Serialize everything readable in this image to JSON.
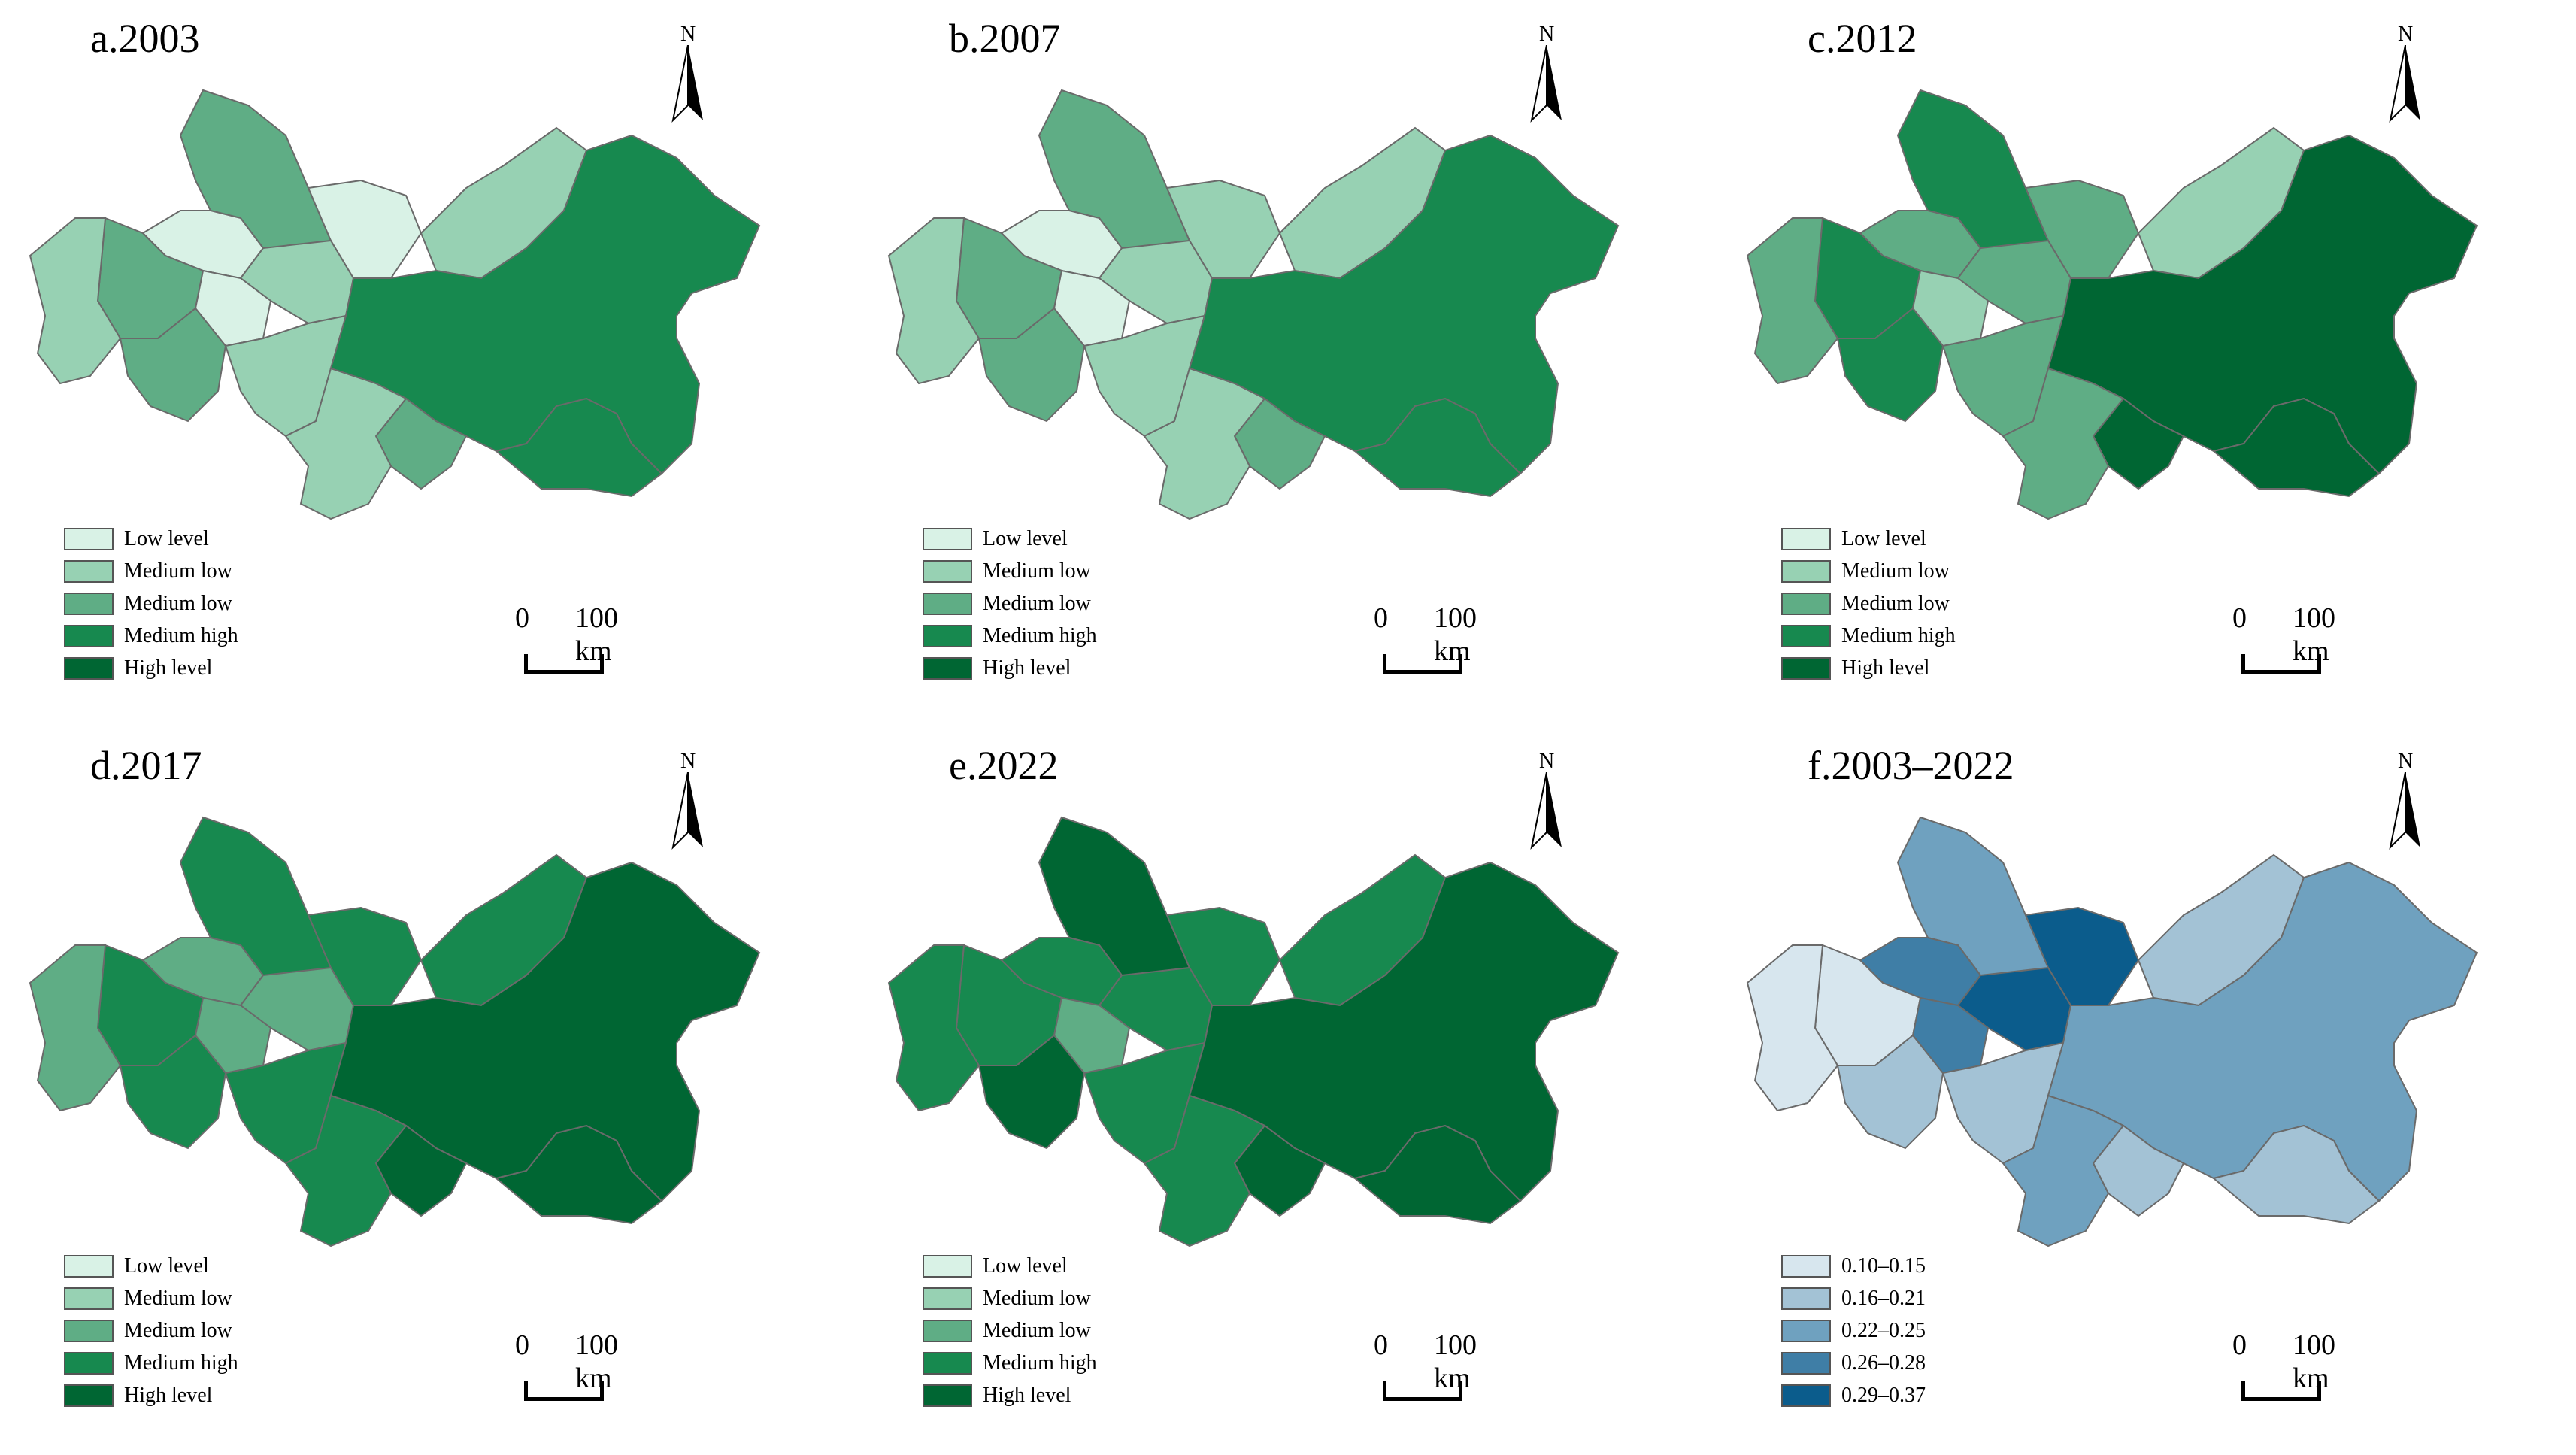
{
  "panels": [
    {
      "title": "a.2003",
      "north_label": "N",
      "scale": {
        "zero": "0",
        "distance": "100 km"
      },
      "legend": [
        {
          "label": "Low level",
          "color": "#d9f2e6"
        },
        {
          "label": "Medium low",
          "color": "#97d1b3"
        },
        {
          "label": "Medium low",
          "color": "#5fad85"
        },
        {
          "label": "Medium high",
          "color": "#17894f"
        },
        {
          "label": "High level",
          "color": "#006633"
        }
      ],
      "region_colors": [
        "#5fad85",
        "#d9f2e6",
        "#d9f2e6",
        "#97d1b3",
        "#5fad85",
        "#97d1b3",
        "#d9f2e6",
        "#97d1b3",
        "#5fad85",
        "#97d1b3",
        "#17894f",
        "#5fad85",
        "#17894f",
        "#97d1b3"
      ]
    },
    {
      "title": "b.2007",
      "north_label": "N",
      "scale": {
        "zero": "0",
        "distance": "100 km"
      },
      "legend": [
        {
          "label": "Low level",
          "color": "#d9f2e6"
        },
        {
          "label": "Medium low",
          "color": "#97d1b3"
        },
        {
          "label": "Medium low",
          "color": "#5fad85"
        },
        {
          "label": "Medium high",
          "color": "#17894f"
        },
        {
          "label": "High level",
          "color": "#006633"
        }
      ],
      "region_colors": [
        "#5fad85",
        "#d9f2e6",
        "#97d1b3",
        "#97d1b3",
        "#5fad85",
        "#97d1b3",
        "#d9f2e6",
        "#97d1b3",
        "#5fad85",
        "#97d1b3",
        "#17894f",
        "#5fad85",
        "#17894f",
        "#97d1b3"
      ]
    },
    {
      "title": "c.2012",
      "north_label": "N",
      "scale": {
        "zero": "0",
        "distance": "100 km"
      },
      "legend": [
        {
          "label": "Low level",
          "color": "#d9f2e6"
        },
        {
          "label": "Medium low",
          "color": "#97d1b3"
        },
        {
          "label": "Medium low",
          "color": "#5fad85"
        },
        {
          "label": "Medium high",
          "color": "#17894f"
        },
        {
          "label": "High level",
          "color": "#006633"
        }
      ],
      "region_colors": [
        "#17894f",
        "#5fad85",
        "#5fad85",
        "#97d1b3",
        "#17894f",
        "#5fad85",
        "#97d1b3",
        "#5fad85",
        "#17894f",
        "#5fad85",
        "#006633",
        "#006633",
        "#006633",
        "#5fad85"
      ]
    },
    {
      "title": "d.2017",
      "north_label": "N",
      "scale": {
        "zero": "0",
        "distance": "100 km"
      },
      "legend": [
        {
          "label": "Low level",
          "color": "#d9f2e6"
        },
        {
          "label": "Medium low",
          "color": "#97d1b3"
        },
        {
          "label": "Medium low",
          "color": "#5fad85"
        },
        {
          "label": "Medium high",
          "color": "#17894f"
        },
        {
          "label": "High level",
          "color": "#006633"
        }
      ],
      "region_colors": [
        "#17894f",
        "#5fad85",
        "#17894f",
        "#17894f",
        "#17894f",
        "#5fad85",
        "#5fad85",
        "#5fad85",
        "#17894f",
        "#17894f",
        "#006633",
        "#006633",
        "#006633",
        "#17894f"
      ]
    },
    {
      "title": "e.2022",
      "north_label": "N",
      "scale": {
        "zero": "0",
        "distance": "100 km"
      },
      "legend": [
        {
          "label": "Low level",
          "color": "#d9f2e6"
        },
        {
          "label": "Medium low",
          "color": "#97d1b3"
        },
        {
          "label": "Medium low",
          "color": "#5fad85"
        },
        {
          "label": "Medium high",
          "color": "#17894f"
        },
        {
          "label": "High level",
          "color": "#006633"
        }
      ],
      "region_colors": [
        "#006633",
        "#17894f",
        "#17894f",
        "#17894f",
        "#17894f",
        "#17894f",
        "#5fad85",
        "#17894f",
        "#006633",
        "#17894f",
        "#006633",
        "#006633",
        "#006633",
        "#17894f"
      ]
    },
    {
      "title": "f.2003–2022",
      "north_label": "N",
      "scale": {
        "zero": "0",
        "distance": "100 km"
      },
      "legend": [
        {
          "label": "0.10–0.15",
          "color": "#d7e6ee"
        },
        {
          "label": "0.16–0.21",
          "color": "#a3c2d5"
        },
        {
          "label": "0.22–0.25",
          "color": "#6fa1bf"
        },
        {
          "label": "0.26–0.28",
          "color": "#3f7ea6"
        },
        {
          "label": "0.29–0.37",
          "color": "#0b5c8c"
        }
      ],
      "region_colors": [
        "#6fa1bf",
        "#3f7ea6",
        "#0b5c8c",
        "#a3c2d5",
        "#d7e6ee",
        "#0b5c8c",
        "#3f7ea6",
        "#d7e6ee",
        "#a3c2d5",
        "#a3c2d5",
        "#6fa1bf",
        "#a3c2d5",
        "#a3c2d5",
        "#6fa1bf"
      ]
    }
  ]
}
